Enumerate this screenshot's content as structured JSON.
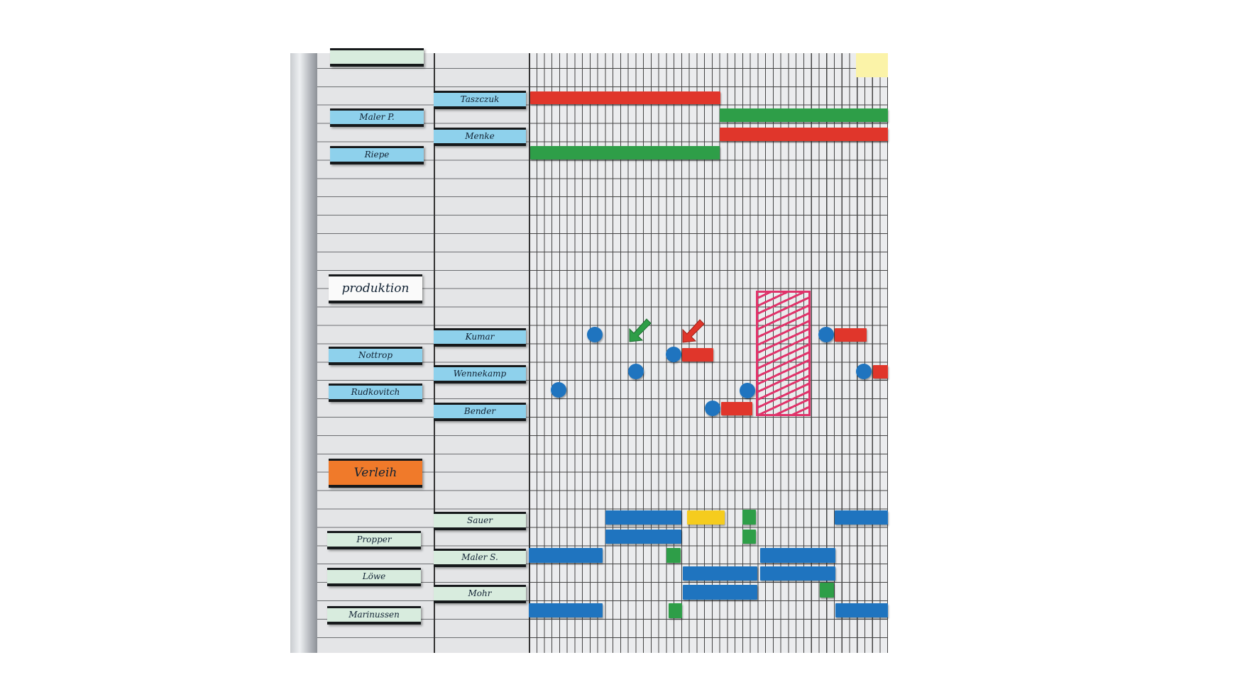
{
  "board": {
    "groups": [
      {
        "label": "produktion",
        "color": "#fafafa"
      },
      {
        "label": "Verleih",
        "color": "#f07a2a"
      }
    ],
    "column1": [
      "",
      "Maler P.",
      "Riepe",
      "Nottrop",
      "Rudkovitch",
      "Propper",
      "Löwe",
      "Marinussen"
    ],
    "column2": [
      "Taszczuk",
      "Menke",
      "Kumar",
      "Wennekamp",
      "Bender",
      "Sauer",
      "Maler S.",
      "Mohr"
    ],
    "colors": {
      "red": "#e0362b",
      "green": "#2e9e48",
      "blue": "#1f74bf",
      "yellow": "#f5cc1e",
      "pink_hatch": "#e0336a",
      "name_label_blue": "#8ed1ec",
      "name_label_mint": "#d8ecde",
      "sticky_note": "#fbf3a8"
    },
    "icons": [
      "check-arrow-icon",
      "arrow-down-left-icon"
    ]
  }
}
